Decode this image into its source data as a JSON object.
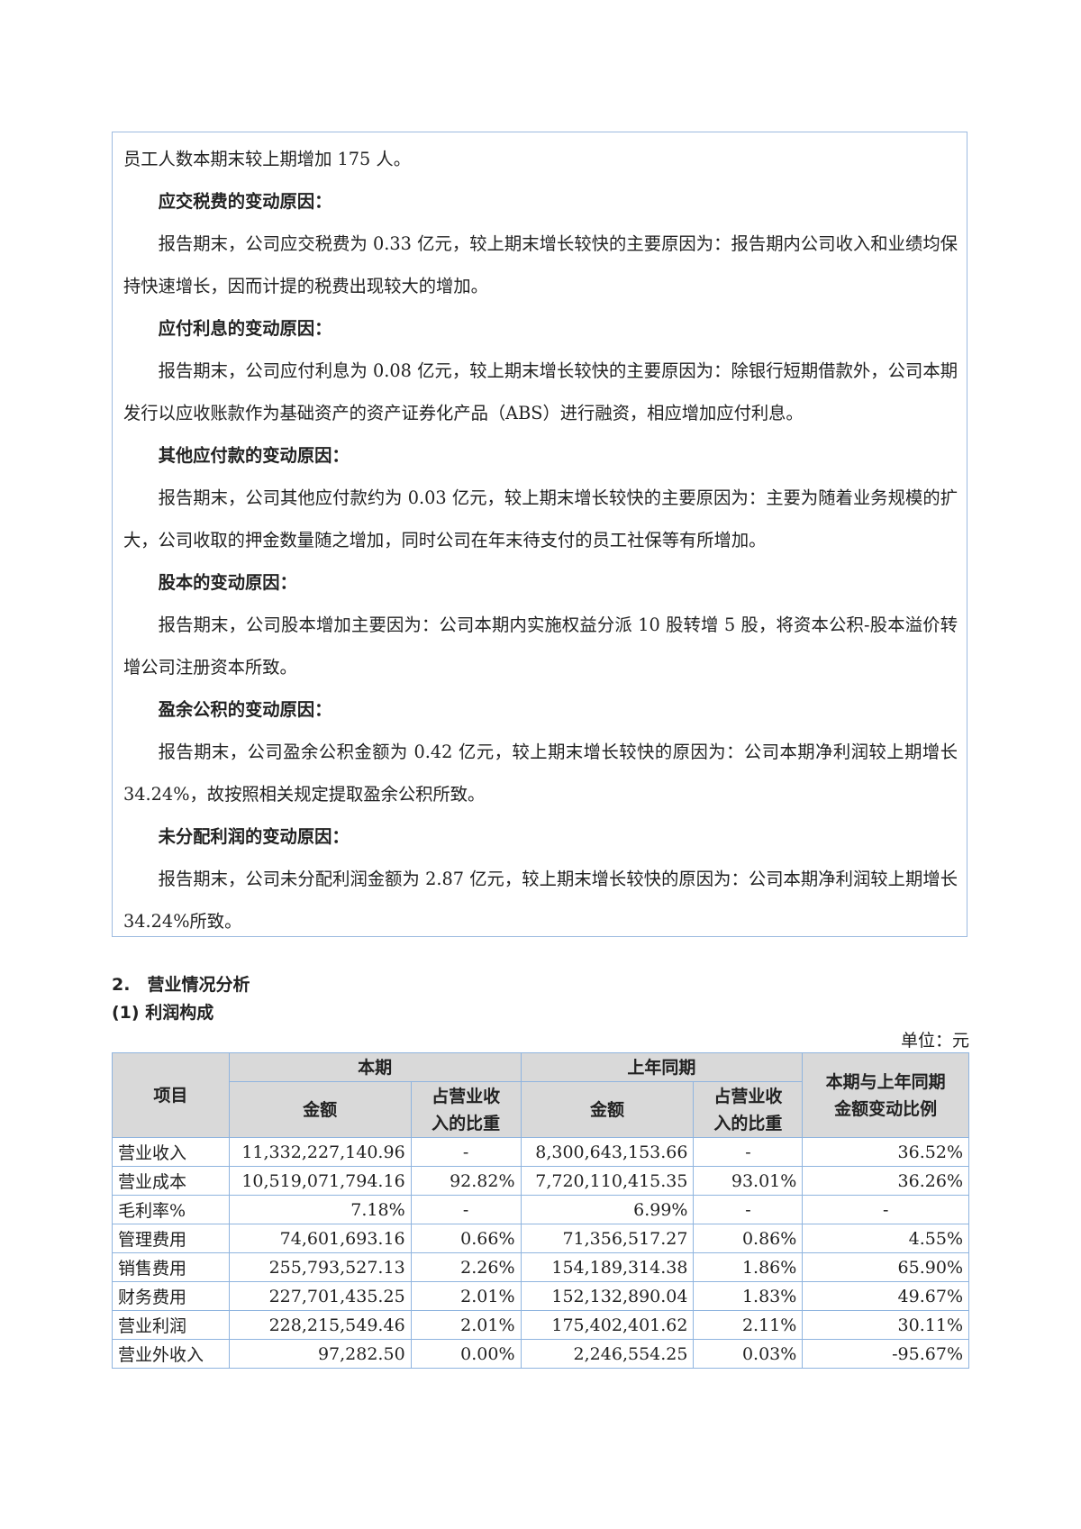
{
  "box_paragraphs": [
    {
      "type": "text",
      "text": "员工人数本期末较上期增加 175 人。"
    },
    {
      "type": "head",
      "text": "应交税费的变动原因："
    },
    {
      "type": "body",
      "text": "报告期末，公司应交税费为 0.33 亿元，较上期末增长较快的主要原因为：报告期内公司收入和业绩均保持快速增长，因而计提的税费出现较大的增加。"
    },
    {
      "type": "head",
      "text": "应付利息的变动原因："
    },
    {
      "type": "body",
      "text": "报告期末，公司应付利息为 0.08 亿元，较上期末增长较快的主要原因为：除银行短期借款外，公司本期发行以应收账款作为基础资产的资产证券化产品（ABS）进行融资，相应增加应付利息。"
    },
    {
      "type": "head",
      "text": "其他应付款的变动原因："
    },
    {
      "type": "body",
      "text": "报告期末，公司其他应付款约为 0.03 亿元，较上期末增长较快的主要原因为：主要为随着业务规模的扩大，公司收取的押金数量随之增加，同时公司在年末待支付的员工社保等有所增加。"
    },
    {
      "type": "head",
      "text": "股本的变动原因："
    },
    {
      "type": "body",
      "text": "报告期末，公司股本增加主要因为：公司本期内实施权益分派 10 股转增 5 股，将资本公积-股本溢价转增公司注册资本所致。"
    },
    {
      "type": "head",
      "text": "盈余公积的变动原因："
    },
    {
      "type": "body",
      "text": "报告期末，公司盈余公积金额为 0.42 亿元，较上期末增长较快的原因为：公司本期净利润较上期增长 34.24%，故按照相关规定提取盈余公积所致。"
    },
    {
      "type": "head",
      "text": "未分配利润的变动原因："
    },
    {
      "type": "body",
      "text": "报告期末，公司未分配利润金额为 2.87 亿元，较上期末增长较快的原因为：公司本期净利润较上期增长 34.24%所致。"
    }
  ],
  "section_title": "2.　营业情况分析",
  "subsection_title": "(1) 利润构成",
  "unit": "单位：元",
  "table": {
    "headers": {
      "item": "项目",
      "current": "本期",
      "prior": "上年同期",
      "change": "本期与上年同期金额变动比例",
      "amount": "金额",
      "ratio": "占营业收入的比重"
    },
    "rows": [
      [
        "营业收入",
        "11,332,227,140.96",
        "-",
        "8,300,643,153.66",
        "-",
        "36.52%"
      ],
      [
        "营业成本",
        "10,519,071,794.16",
        "92.82%",
        "7,720,110,415.35",
        "93.01%",
        "36.26%"
      ],
      [
        "毛利率%",
        "7.18%",
        "-",
        "6.99%",
        "-",
        "-"
      ],
      [
        "管理费用",
        "74,601,693.16",
        "0.66%",
        "71,356,517.27",
        "0.86%",
        "4.55%"
      ],
      [
        "销售费用",
        "255,793,527.13",
        "2.26%",
        "154,189,314.38",
        "1.86%",
        "65.90%"
      ],
      [
        "财务费用",
        "227,701,435.25",
        "2.01%",
        "152,132,890.04",
        "1.83%",
        "49.67%"
      ],
      [
        "营业利润",
        "228,215,549.46",
        "2.01%",
        "175,402,401.62",
        "2.11%",
        "30.11%"
      ],
      [
        "营业外收入",
        "97,282.50",
        "0.00%",
        "2,246,554.25",
        "0.03%",
        "-95.67%"
      ]
    ]
  }
}
